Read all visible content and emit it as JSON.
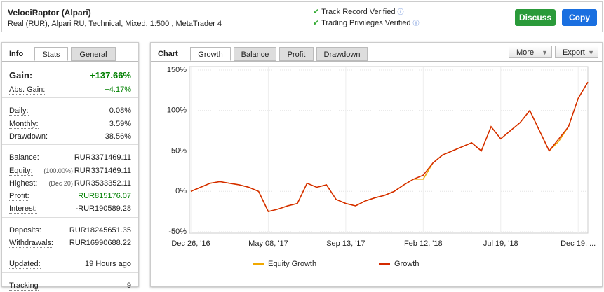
{
  "header": {
    "title": "VelociRaptor (Alpari)",
    "subtitle": [
      "Real (RUR), ",
      "Alpari RU",
      ", Technical, Mixed, 1:500 , MetaTrader 4"
    ],
    "verified": [
      "Track Record Verified",
      "Trading Privileges Verified"
    ],
    "buttons": [
      "Discuss",
      "Copy"
    ]
  },
  "left_panel": {
    "title": "Info",
    "tabs": [
      "Stats",
      "General"
    ],
    "groups": [
      [
        {
          "label": "Gain:",
          "value": "+137.66%",
          "color": "#008000"
        },
        {
          "label": "Abs. Gain:",
          "value": "+4.17%",
          "color": "#008000"
        }
      ],
      [
        {
          "label": "Daily:",
          "value": "0.08%"
        },
        {
          "label": "Monthly:",
          "value": "3.59%"
        },
        {
          "label": "Drawdown:",
          "value": "38.56%"
        }
      ],
      [
        {
          "label": "Balance:",
          "value": "RUR3371469.11"
        },
        {
          "label": "Equity:",
          "note": "(100.00%)",
          "value": "RUR3371469.11"
        },
        {
          "label": "Highest:",
          "note": "(Dec 20)",
          "value": "RUR3533352.11"
        },
        {
          "label": "Profit:",
          "value": "RUR815176.07",
          "color": "#008000"
        },
        {
          "label": "Interest:",
          "value": "-RUR190589.28"
        }
      ],
      [
        {
          "label": "Deposits:",
          "value": "RUR18245651.35"
        },
        {
          "label": "Withdrawals:",
          "value": "RUR16990688.22"
        }
      ],
      [
        {
          "label": "Updated:",
          "value": "19 Hours ago"
        }
      ],
      [
        {
          "label": "Tracking",
          "value": "9"
        }
      ]
    ]
  },
  "chart_panel": {
    "title": "Chart",
    "tabs": [
      "Growth",
      "Balance",
      "Profit",
      "Drawdown"
    ],
    "buttons": [
      "More",
      "Export"
    ]
  },
  "chart_data": {
    "type": "line",
    "categories": [
      "Dec 26, '16",
      null,
      null,
      null,
      null,
      null,
      null,
      null,
      "May 08, '17",
      null,
      null,
      null,
      null,
      null,
      null,
      null,
      "Sep 13, '17",
      null,
      null,
      null,
      null,
      null,
      null,
      null,
      "Feb 12, '18",
      null,
      null,
      null,
      null,
      null,
      null,
      null,
      "Jul 19, '18",
      null,
      null,
      null,
      null,
      null,
      null,
      null,
      "Dec 19, ...",
      null
    ],
    "series": [
      {
        "name": "Equity Growth",
        "color": "#f0a800",
        "values": [
          0,
          5,
          10,
          12,
          10,
          8,
          5,
          0,
          -25,
          -22,
          -18,
          -15,
          10,
          5,
          8,
          -10,
          -15,
          -18,
          -12,
          -8,
          -5,
          0,
          8,
          15,
          15,
          35,
          45,
          50,
          55,
          60,
          50,
          80,
          65,
          75,
          85,
          100,
          75,
          50,
          62,
          80,
          115,
          135
        ]
      },
      {
        "name": "Growth",
        "color": "#d42a00",
        "values": [
          0,
          5,
          10,
          12,
          10,
          8,
          5,
          0,
          -25,
          -22,
          -18,
          -15,
          10,
          5,
          8,
          -10,
          -15,
          -18,
          -12,
          -8,
          -5,
          0,
          8,
          15,
          20,
          35,
          45,
          50,
          55,
          60,
          50,
          80,
          65,
          75,
          85,
          100,
          75,
          50,
          65,
          80,
          115,
          135
        ]
      }
    ],
    "ylim": [
      -50,
      150
    ],
    "yticks": [
      {
        "value": -50,
        "label": "-50%"
      },
      {
        "value": 0,
        "label": "0%"
      },
      {
        "value": 50,
        "label": "50%"
      },
      {
        "value": 100,
        "label": "100%"
      },
      {
        "value": 150,
        "label": "150%"
      }
    ],
    "grid": true
  }
}
